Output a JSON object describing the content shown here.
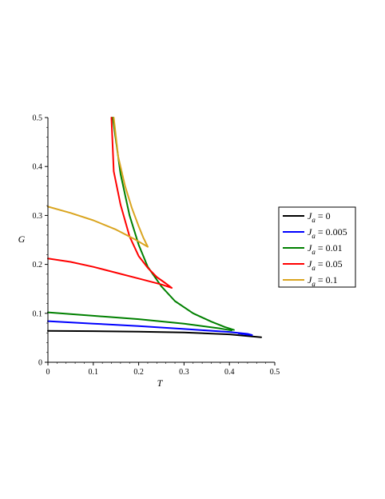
{
  "chart_data": {
    "type": "line",
    "xlabel": "T",
    "ylabel": "G",
    "xlim": [
      0,
      0.5
    ],
    "ylim": [
      0,
      0.5
    ],
    "xticks": [
      "0",
      "0.1",
      "0.2",
      "0.3",
      "0.4",
      "0.5"
    ],
    "yticks": [
      "0",
      "0.1",
      "0.2",
      "0.3",
      "0.4",
      "0.5"
    ],
    "grid": false,
    "legend_position": "right",
    "series": [
      {
        "name": "J_a = 0",
        "legend_symbol": "J",
        "legend_sub": "a",
        "legend_value": " = 0",
        "color": "#000000",
        "branches": [
          [
            [
              0,
              0.064
            ],
            [
              0.1,
              0.0635
            ],
            [
              0.2,
              0.0625
            ],
            [
              0.3,
              0.061
            ],
            [
              0.4,
              0.057
            ],
            [
              0.47,
              0.051
            ]
          ]
        ]
      },
      {
        "name": "J_a = 0.005",
        "legend_symbol": "J",
        "legend_sub": "a",
        "legend_value": " = 0.005",
        "color": "#0000ff",
        "branches": [
          [
            [
              0,
              0.084
            ],
            [
              0.1,
              0.079
            ],
            [
              0.2,
              0.074
            ],
            [
              0.3,
              0.068
            ],
            [
              0.4,
              0.062
            ],
            [
              0.44,
              0.058
            ],
            [
              0.45,
              0.0555
            ],
            [
              0.44,
              0.0565
            ],
            [
              0.42,
              0.059
            ]
          ]
        ]
      },
      {
        "name": "J_a = 0.01",
        "legend_symbol": "J",
        "legend_sub": "a",
        "legend_value": " = 0.01",
        "color": "#008000",
        "branches": [
          [
            [
              0,
              0.102
            ],
            [
              0.1,
              0.095
            ],
            [
              0.2,
              0.088
            ],
            [
              0.3,
              0.079
            ],
            [
              0.38,
              0.069
            ],
            [
              0.405,
              0.065
            ]
          ],
          [
            [
              0.143,
              0.5
            ],
            [
              0.16,
              0.385
            ],
            [
              0.18,
              0.3
            ],
            [
              0.2,
              0.24
            ],
            [
              0.22,
              0.195
            ],
            [
              0.25,
              0.155
            ],
            [
              0.28,
              0.125
            ],
            [
              0.32,
              0.1
            ],
            [
              0.36,
              0.083
            ],
            [
              0.39,
              0.072
            ],
            [
              0.41,
              0.066
            ]
          ]
        ]
      },
      {
        "name": "J_a = 0.05",
        "legend_symbol": "J",
        "legend_sub": "a",
        "legend_value": " = 0.05",
        "color": "#ff0000",
        "branches": [
          [
            [
              0,
              0.212
            ],
            [
              0.05,
              0.205
            ],
            [
              0.1,
              0.195
            ],
            [
              0.15,
              0.183
            ],
            [
              0.2,
              0.171
            ],
            [
              0.25,
              0.159
            ],
            [
              0.273,
              0.152
            ],
            [
              0.26,
              0.161
            ],
            [
              0.24,
              0.174
            ],
            [
              0.22,
              0.193
            ],
            [
              0.2,
              0.217
            ],
            [
              0.18,
              0.257
            ],
            [
              0.16,
              0.322
            ],
            [
              0.145,
              0.39
            ],
            [
              0.14,
              0.5
            ]
          ]
        ]
      },
      {
        "name": "J_a = 0.1",
        "legend_symbol": "J",
        "legend_sub": "a",
        "legend_value": " = 0.1",
        "color": "#daa520",
        "branches": [
          [
            [
              0,
              0.318
            ],
            [
              0.05,
              0.305
            ],
            [
              0.1,
              0.29
            ],
            [
              0.15,
              0.271
            ],
            [
              0.19,
              0.252
            ],
            [
              0.22,
              0.236
            ],
            [
              0.21,
              0.255
            ],
            [
              0.2,
              0.278
            ],
            [
              0.185,
              0.315
            ],
            [
              0.17,
              0.36
            ],
            [
              0.155,
              0.42
            ],
            [
              0.145,
              0.5
            ]
          ]
        ]
      }
    ]
  }
}
